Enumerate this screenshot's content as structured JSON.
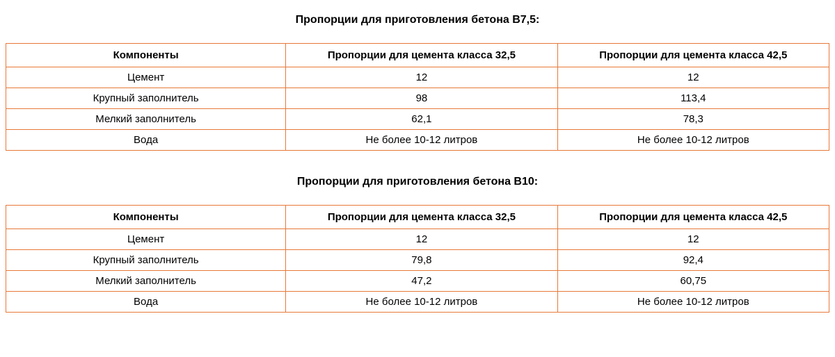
{
  "styling": {
    "border_color": "#e87838",
    "background_color": "#ffffff",
    "text_color": "#000000",
    "font_family": "Arial, Helvetica, sans-serif",
    "title_fontsize": 16,
    "header_fontsize": 15,
    "cell_fontsize": 15,
    "column_widths": [
      "34%",
      "33%",
      "33%"
    ]
  },
  "section1": {
    "title": "Пропорции для приготовления бетона В7,5:",
    "columns": [
      "Компоненты",
      "Пропорции для цемента класса 32,5",
      "Пропорции для цемента класса 42,5"
    ],
    "rows": [
      [
        "Цемент",
        "12",
        "12"
      ],
      [
        "Крупный заполнитель",
        "98",
        "113,4"
      ],
      [
        "Мелкий заполнитель",
        "62,1",
        "78,3"
      ],
      [
        "Вода",
        "Не более 10-12 литров",
        "Не более 10-12 литров"
      ]
    ]
  },
  "section2": {
    "title": "Пропорции для приготовления бетона В10:",
    "columns": [
      "Компоненты",
      "Пропорции для цемента класса 32,5",
      "Пропорции для цемента класса 42,5"
    ],
    "rows": [
      [
        "Цемент",
        "12",
        "12"
      ],
      [
        "Крупный заполнитель",
        "79,8",
        "92,4"
      ],
      [
        "Мелкий заполнитель",
        "47,2",
        "60,75"
      ],
      [
        "Вода",
        "Не более 10-12 литров",
        "Не более 10-12 литров"
      ]
    ]
  }
}
